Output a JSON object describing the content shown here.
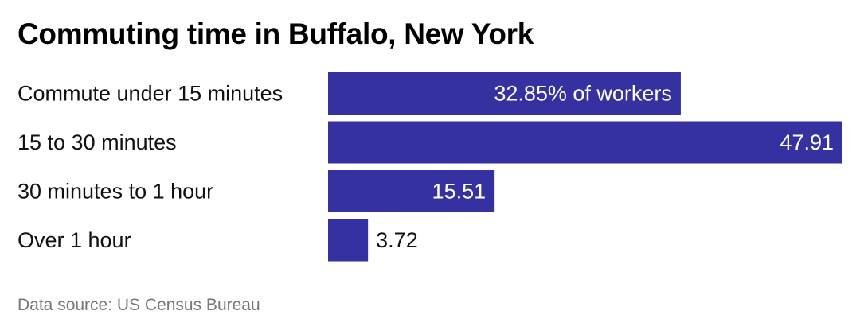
{
  "title": "Commuting time in Buffalo, New York",
  "footer": "Data source: US Census Bureau",
  "colors": {
    "bar": "#3531a1",
    "label_inside": "#ffffff",
    "label_outside": "#111111",
    "category_text": "#111111",
    "source_text": "#777777"
  },
  "chart_data": {
    "type": "bar",
    "orientation": "horizontal",
    "categories": [
      "Commute under 15 minutes",
      "15 to 30 minutes",
      "30 minutes to 1 hour",
      "Over 1 hour"
    ],
    "values": [
      32.85,
      47.91,
      15.51,
      3.72
    ],
    "value_labels": [
      "32.85% of workers",
      "47.91",
      "15.51",
      "3.72"
    ],
    "unit": "% of workers",
    "xlim": [
      0,
      47.91
    ],
    "grid": false,
    "legend": "none"
  }
}
